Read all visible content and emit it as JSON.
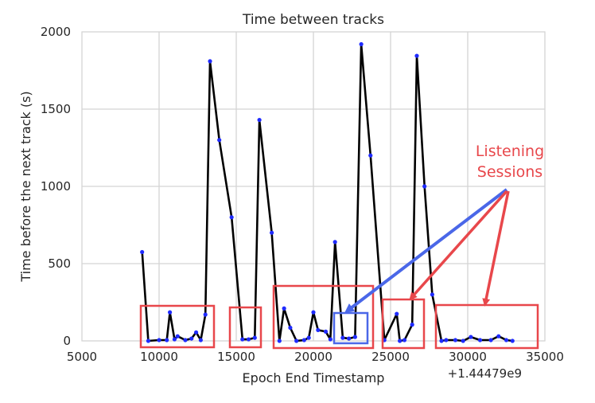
{
  "chart_data": {
    "type": "line",
    "title": "Time between tracks",
    "xlabel": "Epoch End Timestamp",
    "ylabel": "Time before the next track (s)",
    "x_offset_label": "+1.44479e9",
    "xlim": [
      5000,
      35000
    ],
    "ylim": [
      0,
      2000
    ],
    "x_ticks": [
      5000,
      10000,
      15000,
      20000,
      25000,
      30000,
      35000
    ],
    "y_ticks": [
      0,
      500,
      1000,
      1500,
      2000
    ],
    "grid": true,
    "line_color": "#000000",
    "marker_color": "#1f2bff",
    "series": [
      {
        "x": [
          8900,
          9300,
          10000,
          10500,
          10700,
          11000,
          11200,
          11700,
          12100,
          12400,
          12700,
          13000,
          13300,
          13900,
          14700,
          15400,
          15800,
          16200,
          16500,
          17300,
          17800,
          18100,
          18500,
          18900,
          19400,
          19700,
          20000,
          20300,
          20800,
          21100,
          21400,
          21900,
          22300,
          22700,
          23100,
          23700,
          24600,
          25400,
          25600,
          25900,
          26400,
          26700,
          27200,
          27700,
          28300,
          28600,
          29200,
          29700,
          30200,
          30800,
          31500,
          32000,
          32500,
          32900
        ],
        "y": [
          575,
          0,
          5,
          5,
          185,
          10,
          30,
          5,
          15,
          55,
          5,
          170,
          1810,
          1300,
          800,
          10,
          10,
          20,
          1430,
          700,
          0,
          210,
          85,
          0,
          5,
          20,
          185,
          70,
          60,
          10,
          640,
          20,
          15,
          25,
          1920,
          1200,
          5,
          175,
          0,
          5,
          105,
          1845,
          1000,
          300,
          0,
          5,
          5,
          0,
          25,
          5,
          5,
          30,
          5,
          0
        ]
      }
    ],
    "annotation": {
      "text_lines": [
        "Listening",
        "Sessions"
      ],
      "color": "#e8474b",
      "highlight_color": "#4a67e8"
    }
  }
}
